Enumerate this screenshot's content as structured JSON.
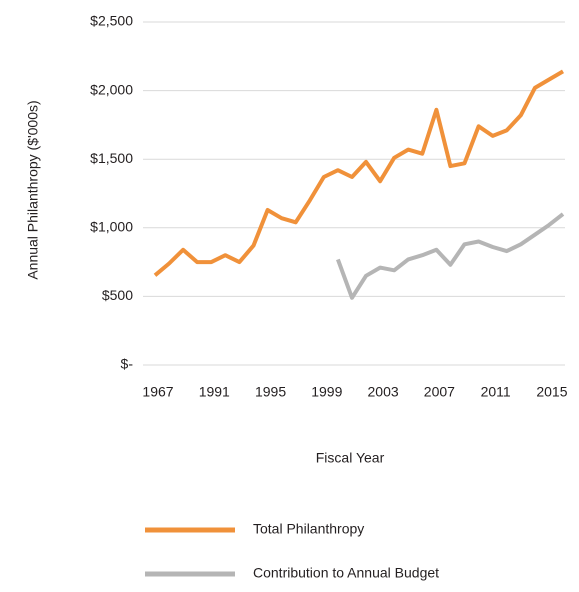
{
  "chart_data": {
    "type": "line",
    "y_label": "Annual Philanthropy ($'000s)",
    "x_label": "Fiscal Year",
    "categories": [
      "1967",
      null,
      null,
      null,
      "1991",
      null,
      null,
      null,
      "1995",
      null,
      null,
      null,
      "1999",
      null,
      null,
      null,
      "2003",
      null,
      null,
      null,
      "2007",
      null,
      null,
      null,
      "2011",
      null,
      null,
      null,
      "2015",
      null
    ],
    "series": [
      {
        "name": "Total Philanthropy",
        "color": "#f0913a",
        "values": [
          654,
          740,
          840,
          750,
          750,
          800,
          750,
          870,
          1130,
          1070,
          1040,
          1200,
          1370,
          1420,
          1370,
          1480,
          1340,
          1510,
          1570,
          1540,
          1860,
          1450,
          1470,
          1740,
          1670,
          1710,
          1820,
          2020,
          2080,
          2140
        ]
      },
      {
        "name": "Contribution to Annual Budget",
        "color": "#b5b5b5",
        "values": [
          null,
          null,
          null,
          null,
          null,
          null,
          null,
          null,
          null,
          null,
          null,
          null,
          null,
          770,
          490,
          650,
          710,
          690,
          770,
          800,
          840,
          730,
          880,
          900,
          860,
          830,
          880,
          950,
          1020,
          1100
        ]
      }
    ],
    "ylim": [
      0,
      2500
    ],
    "yticks": [
      {
        "value": 0,
        "label": "$-"
      },
      {
        "value": 500,
        "label": "$500"
      },
      {
        "value": 1000,
        "label": "$1,000"
      },
      {
        "value": 1500,
        "label": "$1,500"
      },
      {
        "value": 2000,
        "label": "$2,000"
      },
      {
        "value": 2500,
        "label": "$2,500"
      }
    ],
    "grid": true,
    "legend": "bottom"
  }
}
